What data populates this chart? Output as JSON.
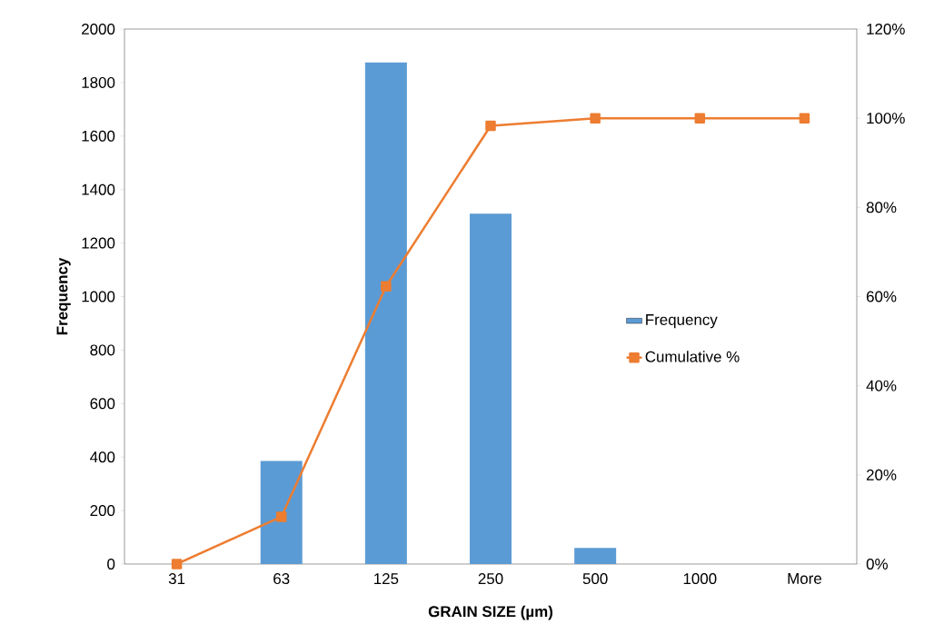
{
  "chart_data": {
    "type": "bar",
    "xlabel": "GRAIN SIZE (µm)",
    "ylabel": "Frequency",
    "categories": [
      "31",
      "63",
      "125",
      "250",
      "500",
      "1000",
      "More"
    ],
    "series": [
      {
        "name": "Frequency",
        "color": "#5b9bd5",
        "values": [
          0,
          385,
          1875,
          1310,
          60,
          0,
          0
        ]
      },
      {
        "name": "Cumulative %",
        "type": "line",
        "axis": "y2",
        "color": "#ed7d31",
        "marker": "square",
        "values": [
          0,
          10.6,
          62.3,
          98.3,
          100,
          100,
          100
        ]
      }
    ],
    "ylim": [
      0,
      2000
    ],
    "yticks": [
      0,
      200,
      400,
      600,
      800,
      1000,
      1200,
      1400,
      1600,
      1800,
      2000
    ],
    "y2lim": [
      0,
      120
    ],
    "y2ticks": [
      {
        "value": 0,
        "label": "0%"
      },
      {
        "value": 20,
        "label": "20%"
      },
      {
        "value": 40,
        "label": "40%"
      },
      {
        "value": 60,
        "label": "60%"
      },
      {
        "value": 80,
        "label": "80%"
      },
      {
        "value": 100,
        "label": "100%"
      },
      {
        "value": 120,
        "label": "120%"
      }
    ],
    "legend": "right"
  }
}
